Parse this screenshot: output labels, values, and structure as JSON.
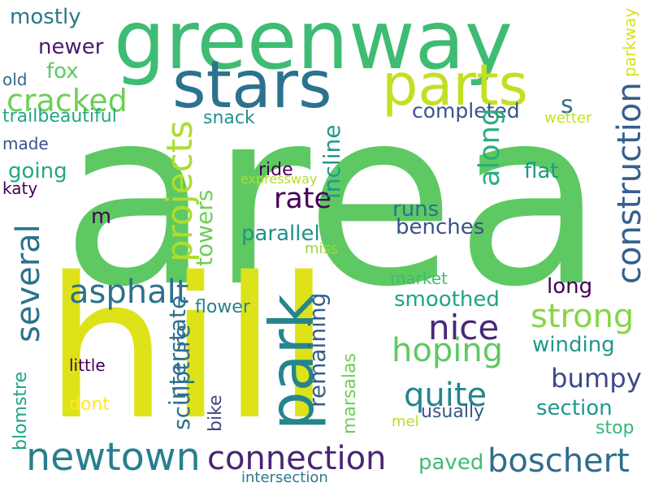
{
  "words": [
    {
      "text": "area",
      "color": "#5ec962"
    },
    {
      "text": "hill",
      "color": "#dde318"
    },
    {
      "text": "greenway",
      "color": "#3fbc73"
    },
    {
      "text": "park",
      "color": "#25858e"
    },
    {
      "text": "stars",
      "color": "#2c728e"
    },
    {
      "text": "parts",
      "color": "#c2df23"
    },
    {
      "text": "newtown",
      "color": "#277f8e"
    },
    {
      "text": "connection",
      "color": "#482475"
    },
    {
      "text": "boschert",
      "color": "#2e6d8e"
    },
    {
      "text": "construction",
      "color": "#355f8d"
    },
    {
      "text": "cracked",
      "color": "#6ece58"
    },
    {
      "text": "asphalt",
      "color": "#2c728e"
    },
    {
      "text": "projects",
      "color": "#addc30"
    },
    {
      "text": "several",
      "color": "#2c728e"
    },
    {
      "text": "rate",
      "color": "#440154"
    },
    {
      "text": "nice",
      "color": "#482878"
    },
    {
      "text": "strong",
      "color": "#86d549"
    },
    {
      "text": "hoping",
      "color": "#5ec962"
    },
    {
      "text": "bumpy",
      "color": "#3e4989"
    },
    {
      "text": "quite",
      "color": "#25858e"
    },
    {
      "text": "m",
      "color": "#440154"
    },
    {
      "text": "s",
      "color": "#2c728e"
    },
    {
      "text": "completed",
      "color": "#3b528b"
    },
    {
      "text": "along",
      "color": "#29af7f"
    },
    {
      "text": "mostly",
      "color": "#2a788e"
    },
    {
      "text": "newer",
      "color": "#481a6c"
    },
    {
      "text": "fox",
      "color": "#5ec962"
    },
    {
      "text": "old",
      "color": "#31688e"
    },
    {
      "text": "trailbeautiful",
      "color": "#22a884"
    },
    {
      "text": "made",
      "color": "#3b528b"
    },
    {
      "text": "going",
      "color": "#22a884"
    },
    {
      "text": "katy",
      "color": "#440154"
    },
    {
      "text": "snack",
      "color": "#21918c"
    },
    {
      "text": "incline",
      "color": "#1f988b"
    },
    {
      "text": "ride",
      "color": "#440154"
    },
    {
      "text": "towers",
      "color": "#6ece58"
    },
    {
      "text": "parallel",
      "color": "#21918c"
    },
    {
      "text": "runs",
      "color": "#2c728e"
    },
    {
      "text": "benches",
      "color": "#3b528b"
    },
    {
      "text": "flat",
      "color": "#1f988b"
    },
    {
      "text": "miss",
      "color": "#95d840"
    },
    {
      "text": "flower",
      "color": "#26828e"
    },
    {
      "text": "remaining",
      "color": "#355f8d"
    },
    {
      "text": "smoothed",
      "color": "#20a386"
    },
    {
      "text": "market",
      "color": "#3fbc73"
    },
    {
      "text": "long",
      "color": "#440154"
    },
    {
      "text": "winding",
      "color": "#1f988b"
    },
    {
      "text": "interstate",
      "color": "#2c728e"
    },
    {
      "text": "sculpture",
      "color": "#2d708e"
    },
    {
      "text": "bike",
      "color": "#3e4989"
    },
    {
      "text": "little",
      "color": "#440154"
    },
    {
      "text": "dont",
      "color": "#fde725"
    },
    {
      "text": "blomstre",
      "color": "#20a386"
    },
    {
      "text": "marsalas",
      "color": "#6ece58"
    },
    {
      "text": "section",
      "color": "#1f988b"
    },
    {
      "text": "usually",
      "color": "#39568c"
    },
    {
      "text": "stop",
      "color": "#35b779"
    },
    {
      "text": "mel",
      "color": "#b5de2b"
    },
    {
      "text": "paved",
      "color": "#3fbc73"
    },
    {
      "text": "intersection",
      "color": "#2a788e"
    },
    {
      "text": "parkway",
      "color": "#d8e219"
    },
    {
      "text": "wetter",
      "color": "#c8e020"
    },
    {
      "text": "expressway",
      "color": "#b5de2b"
    }
  ]
}
